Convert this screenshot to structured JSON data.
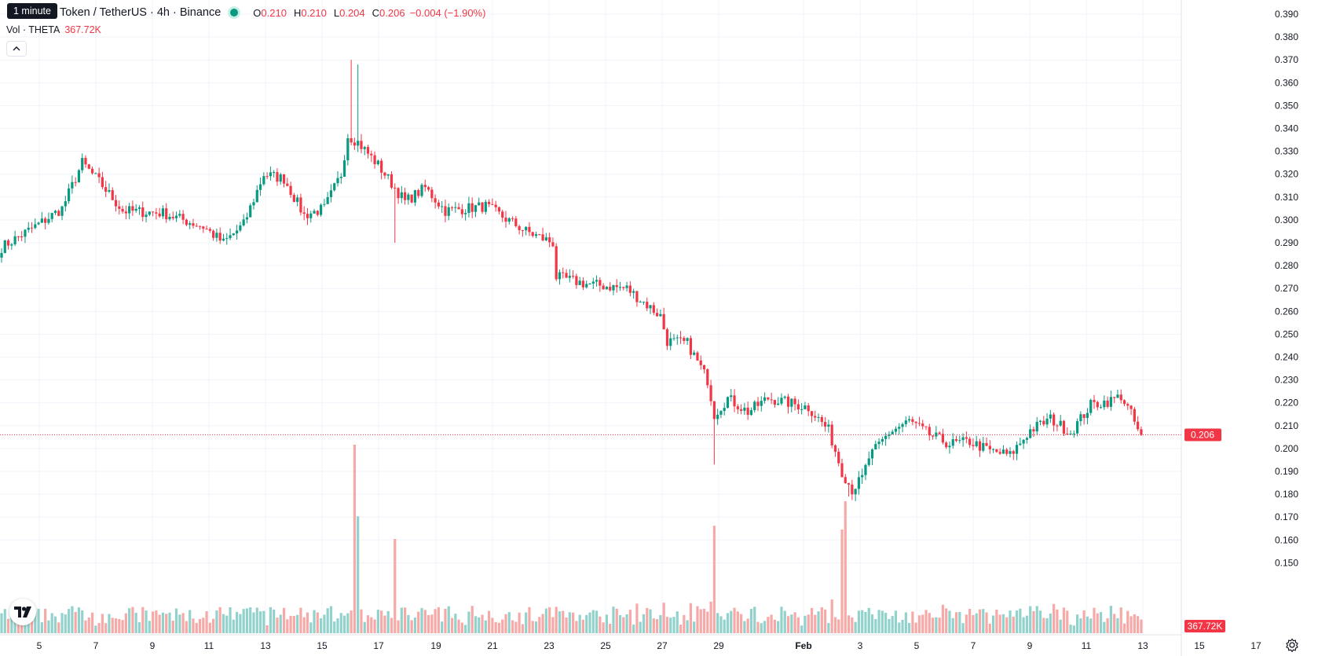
{
  "header": {
    "tooltip": "1 minute",
    "symbol": "Token / TetherUS · 4h · Binance",
    "o_label": "O",
    "o_value": "0.210",
    "h_label": "H",
    "h_value": "0.210",
    "l_label": "L",
    "l_value": "0.204",
    "c_label": "C",
    "c_value": "0.206",
    "change": "−0.004 (−1.90%)"
  },
  "volume": {
    "label": "Vol · THETA",
    "value": "367.72K"
  },
  "price_label": "0.206",
  "volume_label": "367.72K",
  "colors": {
    "up": "#089981",
    "down": "#f23645",
    "up_vol": "#92d2cc",
    "down_vol": "#f7a9a7",
    "grid": "#f0f3fa",
    "price_line": "#f23645"
  },
  "icons": {
    "logo": "tradingview-logo-icon",
    "collapse": "chevron-up-icon",
    "settings": "gear-icon"
  },
  "chart_data": {
    "type": "candlestick",
    "timeframe": "4h",
    "y_ticks": [
      "0.390",
      "0.380",
      "0.370",
      "0.360",
      "0.350",
      "0.340",
      "0.330",
      "0.320",
      "0.310",
      "0.300",
      "0.290",
      "0.280",
      "0.270",
      "0.260",
      "0.250",
      "0.240",
      "0.230",
      "0.220",
      "0.210",
      "0.200",
      "0.190",
      "0.180",
      "0.170",
      "0.160",
      "0.150"
    ],
    "ylim": [
      0.145,
      0.394
    ],
    "x_ticks": [
      "5",
      "7",
      "9",
      "11",
      "13",
      "15",
      "17",
      "19",
      "21",
      "23",
      "25",
      "27",
      "29",
      "Feb",
      "3",
      "5",
      "7",
      "9",
      "11",
      "13",
      "15",
      "17"
    ],
    "last_close": 0.206,
    "anchors": [
      [
        0,
        0.288
      ],
      [
        12,
        0.299
      ],
      [
        18,
        0.305
      ],
      [
        24,
        0.325
      ],
      [
        30,
        0.315
      ],
      [
        36,
        0.304
      ],
      [
        48,
        0.303
      ],
      [
        60,
        0.297
      ],
      [
        66,
        0.29
      ],
      [
        72,
        0.298
      ],
      [
        78,
        0.32
      ],
      [
        84,
        0.318
      ],
      [
        90,
        0.302
      ],
      [
        96,
        0.305
      ],
      [
        101,
        0.32
      ],
      [
        103,
        0.337
      ],
      [
        106,
        0.334
      ],
      [
        112,
        0.324
      ],
      [
        120,
        0.308
      ],
      [
        126,
        0.314
      ],
      [
        132,
        0.304
      ],
      [
        144,
        0.306
      ],
      [
        156,
        0.295
      ],
      [
        164,
        0.29
      ],
      [
        165,
        0.275
      ],
      [
        174,
        0.272
      ],
      [
        186,
        0.27
      ],
      [
        196,
        0.258
      ],
      [
        198,
        0.247
      ],
      [
        204,
        0.246
      ],
      [
        210,
        0.23
      ],
      [
        212,
        0.215
      ],
      [
        216,
        0.222
      ],
      [
        222,
        0.216
      ],
      [
        228,
        0.222
      ],
      [
        240,
        0.218
      ],
      [
        246,
        0.208
      ],
      [
        250,
        0.19
      ],
      [
        253,
        0.182
      ],
      [
        256,
        0.187
      ],
      [
        258,
        0.196
      ],
      [
        264,
        0.207
      ],
      [
        270,
        0.212
      ],
      [
        276,
        0.206
      ],
      [
        282,
        0.202
      ],
      [
        288,
        0.203
      ],
      [
        294,
        0.199
      ],
      [
        300,
        0.197
      ],
      [
        306,
        0.208
      ],
      [
        312,
        0.213
      ],
      [
        318,
        0.207
      ],
      [
        324,
        0.219
      ],
      [
        330,
        0.221
      ],
      [
        333,
        0.223
      ],
      [
        336,
        0.215
      ],
      [
        338,
        0.208
      ],
      [
        339,
        0.206
      ]
    ],
    "spikes": [
      [
        104,
        0.37
      ],
      [
        106,
        0.368
      ],
      [
        117,
        0.29
      ],
      [
        212,
        0.193
      ],
      [
        252,
        0.179
      ],
      [
        254,
        0.177
      ]
    ],
    "volume_spikes": [
      [
        105,
        1.0
      ],
      [
        106,
        0.62
      ],
      [
        117,
        0.5
      ],
      [
        212,
        0.57
      ],
      [
        250,
        0.55
      ],
      [
        251,
        0.7
      ]
    ]
  }
}
